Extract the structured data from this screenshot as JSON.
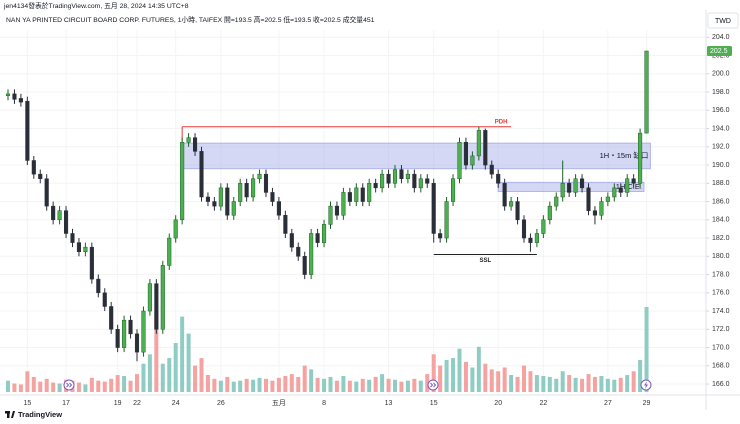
{
  "header": "jen4134發表於TradingView.com, 五月 28, 2024 14:35 UTC+8",
  "footer": "TradingView",
  "chart_data": {
    "type": "candlestick",
    "title": "NAN YA PRINTED CIRCUIT BOARD CORP. FUTURES, 1小時, TAIFEX  開=193.5  高=202.5  低=193.5  收=202.5  成交量451",
    "currency": "TWD",
    "categories": [
      null,
      null,
      null,
      "15",
      null,
      null,
      null,
      null,
      null,
      "17",
      null,
      null,
      null,
      null,
      null,
      null,
      null,
      "19",
      null,
      null,
      "22",
      null,
      null,
      null,
      null,
      null,
      "24",
      null,
      null,
      null,
      null,
      null,
      null,
      "26",
      null,
      null,
      null,
      null,
      null,
      null,
      null,
      null,
      "五月",
      null,
      null,
      null,
      null,
      null,
      null,
      "8",
      null,
      null,
      null,
      null,
      null,
      null,
      null,
      null,
      null,
      "13",
      null,
      null,
      null,
      null,
      null,
      null,
      "15",
      null,
      null,
      null,
      null,
      null,
      null,
      null,
      null,
      null,
      "20",
      null,
      null,
      null,
      null,
      null,
      null,
      "22",
      null,
      null,
      null,
      null,
      null,
      null,
      null,
      null,
      null,
      "27",
      null,
      null,
      null,
      null,
      null,
      "29"
    ],
    "open": [
      197.6,
      197.8,
      197.3,
      197,
      190.5,
      189,
      188.5,
      185.5,
      184,
      185,
      182.5,
      181.5,
      180.5,
      181,
      177.5,
      176,
      174.5,
      172,
      170,
      173,
      171.5,
      169.5,
      174,
      177,
      172,
      179,
      182,
      184,
      192.5,
      193,
      191.5,
      186.5,
      186,
      185.5,
      187.5,
      184.5,
      186,
      188,
      186.5,
      188.5,
      189,
      187,
      186,
      184.5,
      182.5,
      181,
      180,
      178,
      182.5,
      181.5,
      183.5,
      185.5,
      184.5,
      187,
      186,
      187.5,
      186,
      188,
      187.5,
      189,
      188,
      189.5,
      188.5,
      189,
      187.5,
      188.5,
      188,
      182.5,
      182,
      186,
      188.5,
      192.5,
      190,
      191,
      193.8,
      190,
      189,
      188,
      185.5,
      186,
      184,
      182,
      181.5,
      182.5,
      184,
      185.5,
      186.5,
      188,
      187,
      188.5,
      187.5,
      185,
      184.5,
      186,
      186.5,
      187.5,
      187,
      188.5,
      188,
      193.5
    ],
    "high": [
      198.3,
      198.3,
      197.8,
      197.5,
      191,
      189.5,
      189,
      186,
      185.5,
      185.5,
      183,
      182,
      181.5,
      181.5,
      178,
      176.5,
      175,
      172.5,
      173.5,
      173.5,
      172,
      174.5,
      177.5,
      177.5,
      179.5,
      182.5,
      184.5,
      193,
      193.5,
      193.5,
      192,
      187,
      186.5,
      188,
      188,
      186.5,
      188.5,
      188.5,
      189,
      189.5,
      189.5,
      187.5,
      186.5,
      185,
      183,
      181.5,
      180.5,
      183,
      183,
      184,
      186,
      186,
      187.5,
      187.5,
      188,
      188,
      188.5,
      188.5,
      189.5,
      189.5,
      190,
      190,
      189.5,
      189.5,
      189,
      189,
      188.5,
      183,
      186.5,
      189,
      193,
      193,
      191.5,
      194.2,
      194,
      190.5,
      189.5,
      188.5,
      186.5,
      186.5,
      184.5,
      182.5,
      183,
      184.5,
      186,
      187,
      190.5,
      188.5,
      189,
      189,
      188,
      185.5,
      186.5,
      187,
      188,
      188,
      189,
      189,
      194,
      202.5
    ],
    "low": [
      197.1,
      196.7,
      196.4,
      190,
      188.5,
      188,
      185,
      183.5,
      183.5,
      182,
      181,
      180,
      180,
      177,
      175.5,
      174,
      171.5,
      169.5,
      169.5,
      171,
      168.5,
      169,
      173.5,
      171.5,
      171.5,
      178.5,
      181.5,
      183.5,
      192,
      191,
      186,
      185.5,
      185,
      185,
      184,
      184,
      185.5,
      186,
      186,
      188,
      186.5,
      185.5,
      184,
      182,
      180.5,
      179.5,
      177.5,
      177.5,
      181,
      181,
      183,
      184,
      184,
      185.5,
      185.5,
      185.5,
      185.5,
      187,
      187,
      187.5,
      187.5,
      188,
      188,
      187,
      187,
      187.5,
      181.5,
      181.5,
      181.5,
      185.5,
      188,
      189.5,
      189.5,
      190.5,
      189.5,
      188.5,
      187.5,
      185,
      185,
      183.5,
      181.5,
      180.5,
      181,
      182,
      183.5,
      185,
      186,
      186.5,
      186.5,
      187,
      184.5,
      183.5,
      184,
      185.5,
      186,
      186.5,
      186.5,
      187.5,
      187.5,
      193.5
    ],
    "close": [
      197.8,
      197.2,
      196.9,
      190.5,
      189,
      188.5,
      185.5,
      184,
      185,
      182.5,
      181.5,
      180.5,
      181,
      177.5,
      176,
      174.5,
      172,
      170,
      173,
      171.5,
      169.5,
      174,
      177,
      172,
      179,
      182,
      184,
      192.5,
      193,
      191.5,
      186.5,
      186,
      185.5,
      187.5,
      184.5,
      186,
      188,
      186.5,
      188.5,
      189,
      187,
      186,
      184.5,
      182.5,
      181,
      180,
      178,
      182.5,
      181.5,
      183.5,
      185.5,
      184.5,
      187,
      186,
      187.5,
      186,
      188,
      187.5,
      189,
      188,
      189.5,
      188.5,
      189,
      187.5,
      188.5,
      188,
      182.5,
      182,
      186,
      188.5,
      192.5,
      190,
      191,
      193.8,
      190,
      189,
      188,
      185.5,
      186,
      184,
      182,
      181.5,
      182.5,
      184,
      185.5,
      186.5,
      188,
      187,
      188.5,
      187.5,
      185,
      184.5,
      186,
      186.5,
      187.5,
      187,
      188.5,
      188,
      193.5,
      202.5
    ],
    "volume": [
      60,
      45,
      40,
      110,
      80,
      55,
      70,
      50,
      45,
      65,
      60,
      50,
      40,
      75,
      60,
      55,
      70,
      90,
      85,
      60,
      95,
      150,
      200,
      430,
      150,
      180,
      260,
      400,
      310,
      140,
      180,
      90,
      70,
      60,
      80,
      55,
      60,
      70,
      65,
      75,
      70,
      60,
      75,
      85,
      95,
      80,
      140,
      120,
      75,
      70,
      80,
      60,
      85,
      60,
      55,
      70,
      65,
      80,
      95,
      70,
      65,
      55,
      60,
      70,
      60,
      95,
      200,
      140,
      170,
      180,
      230,
      160,
      130,
      240,
      150,
      120,
      110,
      130,
      90,
      80,
      140,
      110,
      90,
      85,
      80,
      70,
      110,
      90,
      75,
      70,
      95,
      80,
      85,
      70,
      65,
      75,
      90,
      110,
      170,
      451
    ],
    "ylim": [
      164.8,
      204.8
    ],
    "yticks": [
      {
        "value": 166,
        "label": "166.0"
      },
      {
        "value": 168,
        "label": "168.0"
      },
      {
        "value": 170,
        "label": "170.0"
      },
      {
        "value": 172,
        "label": "172.0"
      },
      {
        "value": 174,
        "label": "174.0"
      },
      {
        "value": 176,
        "label": "176.0"
      },
      {
        "value": 178,
        "label": "178.0"
      },
      {
        "value": 180,
        "label": "180.0"
      },
      {
        "value": 182,
        "label": "182.0"
      },
      {
        "value": 184,
        "label": "184.0"
      },
      {
        "value": 186,
        "label": "186.0"
      },
      {
        "value": 188,
        "label": "188.0"
      },
      {
        "value": 190,
        "label": "190.0"
      },
      {
        "value": 192,
        "label": "192.0"
      },
      {
        "value": 194,
        "label": "194.0"
      },
      {
        "value": 196,
        "label": "196.0"
      },
      {
        "value": 198,
        "label": "198.0"
      },
      {
        "value": 200,
        "label": "200.0"
      },
      {
        "value": 202,
        "label": "202.0"
      },
      {
        "value": 204,
        "label": "204.0"
      }
    ],
    "grid": true,
    "up_color": "#4caf50",
    "down_color": "#2a2e39",
    "volume_up_color": "#8fcdc4",
    "volume_down_color": "#f5a3a0",
    "annotations": [
      {
        "type": "line",
        "label": "PDH",
        "price": 194.2,
        "color": "#e53935"
      },
      {
        "type": "zone",
        "label": "1H・15m 缺口",
        "top": 192.4,
        "bottom": 189.6,
        "color": "#9fa8e6"
      },
      {
        "type": "zone",
        "label": "1H C.E.",
        "top": 188.1,
        "bottom": 187.1,
        "color": "#9fa8e6"
      },
      {
        "type": "line",
        "label": "SSL",
        "price": 180.2,
        "color": "#222222"
      }
    ]
  }
}
